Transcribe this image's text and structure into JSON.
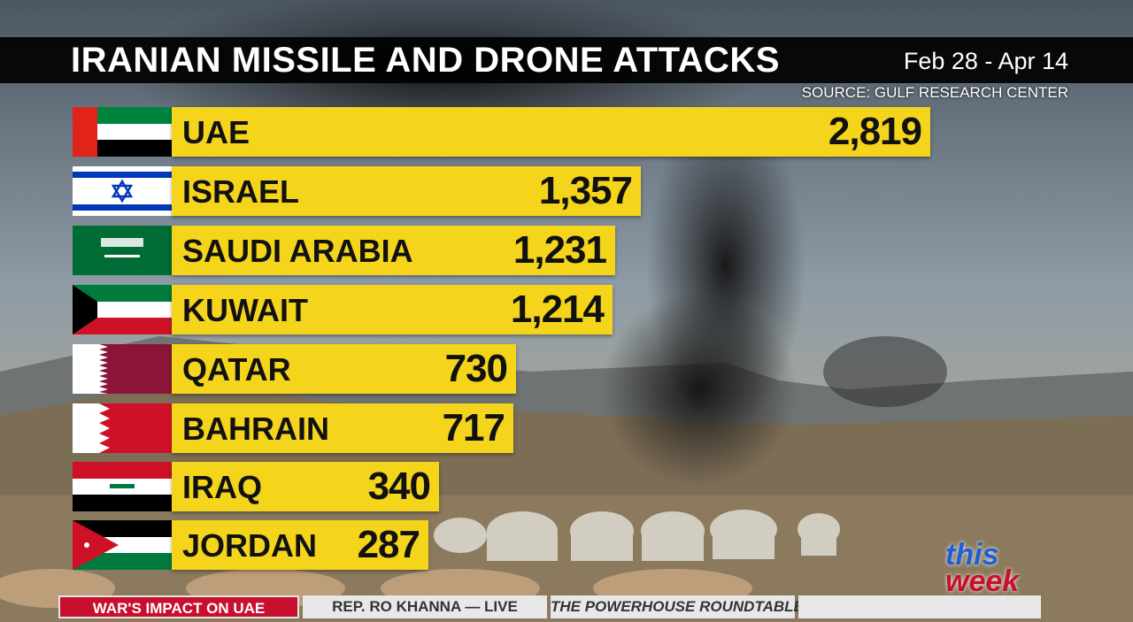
{
  "header": {
    "title": "IRANIAN MISSILE AND DRONE ATTACKS",
    "date_range": "Feb 28 - Apr 14",
    "source": "SOURCE: GULF RESEARCH CENTER"
  },
  "chart_data": {
    "type": "bar",
    "orientation": "horizontal",
    "title": "IRANIAN MISSILE AND DRONE ATTACKS",
    "subtitle": "Feb 28 - Apr 14",
    "categories": [
      "UAE",
      "ISRAEL",
      "SAUDI ARABIA",
      "KUWAIT",
      "QATAR",
      "BAHRAIN",
      "IRAQ",
      "JORDAN"
    ],
    "values": [
      2819,
      1357,
      1231,
      1214,
      730,
      717,
      340,
      287
    ],
    "value_labels": [
      "2,819",
      "1,357",
      "1,231",
      "1,214",
      "730",
      "717",
      "340",
      "287"
    ],
    "flags": [
      "uae-flag-icon",
      "israel-flag-icon",
      "saudi-arabia-flag-icon",
      "kuwait-flag-icon",
      "qatar-flag-icon",
      "bahrain-flag-icon",
      "iraq-flag-icon",
      "jordan-flag-icon"
    ],
    "bar_color": "#f5d51c",
    "grid": false
  },
  "ticker": {
    "items": [
      "WAR'S IMPACT ON UAE",
      "REP. RO KHANNA — LIVE",
      "THE POWERHOUSE ROUNDTABLE"
    ],
    "active_color": "#c8102e"
  },
  "logo": {
    "line1": "this",
    "line2": "week"
  }
}
